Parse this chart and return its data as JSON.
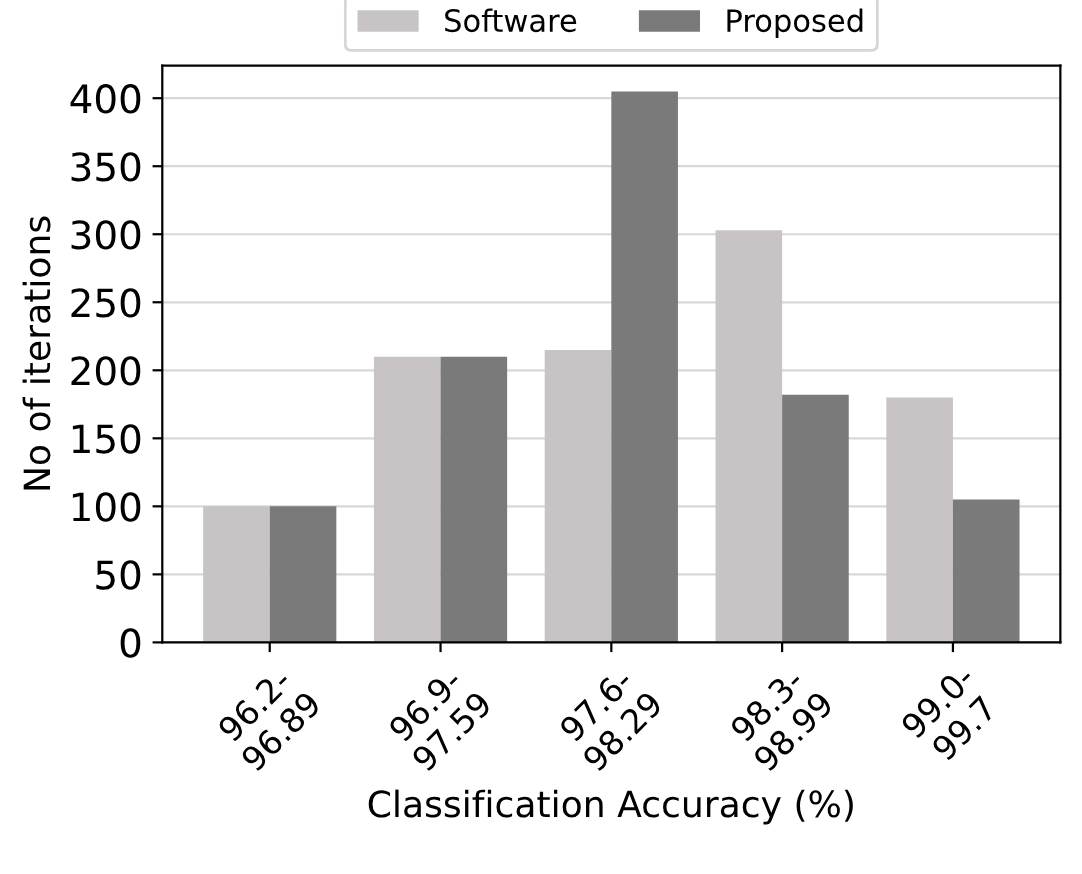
{
  "chart_data": {
    "type": "bar",
    "xlabel": "Classification Accuracy (%)",
    "ylabel": "No of iterations",
    "categories": [
      "96.2-\n96.89",
      "96.9-\n97.59",
      "97.6-\n98.29",
      "98.3-\n98.99",
      "99.0-\n99.7"
    ],
    "series": [
      {
        "name": "Software",
        "color": "#c8c4c6",
        "values": [
          100,
          210,
          215,
          303,
          180
        ]
      },
      {
        "name": "Proposed",
        "color": "#7a7a7a",
        "values": [
          100,
          210,
          405,
          182,
          105
        ]
      }
    ],
    "ylim": [
      0,
      424
    ],
    "yticks": [
      0,
      50,
      100,
      150,
      200,
      250,
      300,
      350,
      400
    ],
    "grid": "y",
    "legend": "top"
  }
}
